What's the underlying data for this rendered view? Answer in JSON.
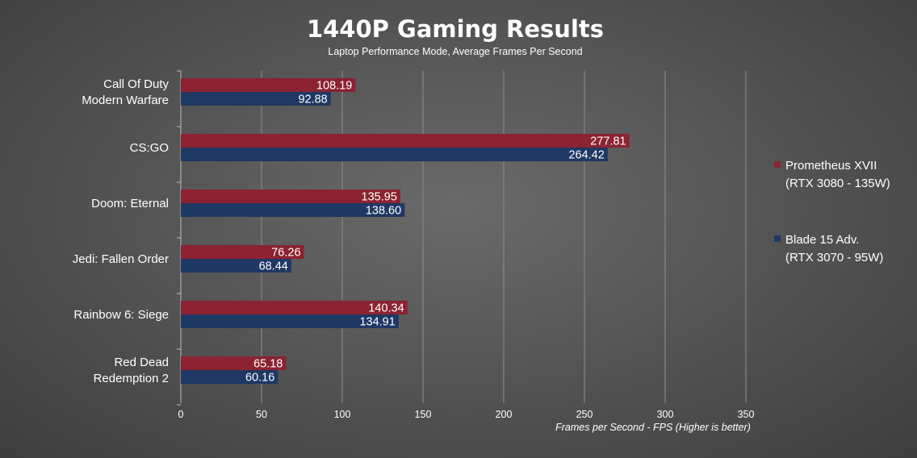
{
  "chart_data": {
    "type": "bar",
    "orientation": "horizontal",
    "title": "1440P Gaming Results",
    "subtitle": "Laptop Performance Mode, Average Frames Per Second",
    "xlabel": "Frames per Second - FPS (Higher is better)",
    "categories": [
      [
        "Call Of Duty",
        "Modern Warfare"
      ],
      [
        "CS:GO"
      ],
      [
        "Doom: Eternal"
      ],
      [
        "Jedi: Fallen Order"
      ],
      [
        "Rainbow 6: Siege"
      ],
      [
        "Red Dead",
        "Redemption 2"
      ]
    ],
    "series": [
      {
        "name": [
          "Prometheus XVII",
          "(RTX 3080 - 135W)"
        ],
        "color": "#8b2332",
        "values": [
          108.19,
          277.81,
          135.95,
          76.26,
          140.34,
          65.18
        ],
        "labels": [
          "108.19",
          "277.81",
          "135.95",
          "76.26",
          "140.34",
          "65.18"
        ]
      },
      {
        "name": [
          "Blade 15 Adv.",
          "(RTX 3070 - 95W)"
        ],
        "color": "#1f3864",
        "values": [
          92.88,
          264.42,
          138.6,
          68.44,
          134.91,
          60.16
        ],
        "labels": [
          "92.88",
          "264.42",
          "138.60",
          "68.44",
          "134.91",
          "60.16"
        ]
      }
    ],
    "xlim": [
      0,
      350
    ],
    "xticks": [
      0,
      50,
      100,
      150,
      200,
      250,
      300,
      350
    ],
    "grid": true,
    "legend": "right"
  }
}
